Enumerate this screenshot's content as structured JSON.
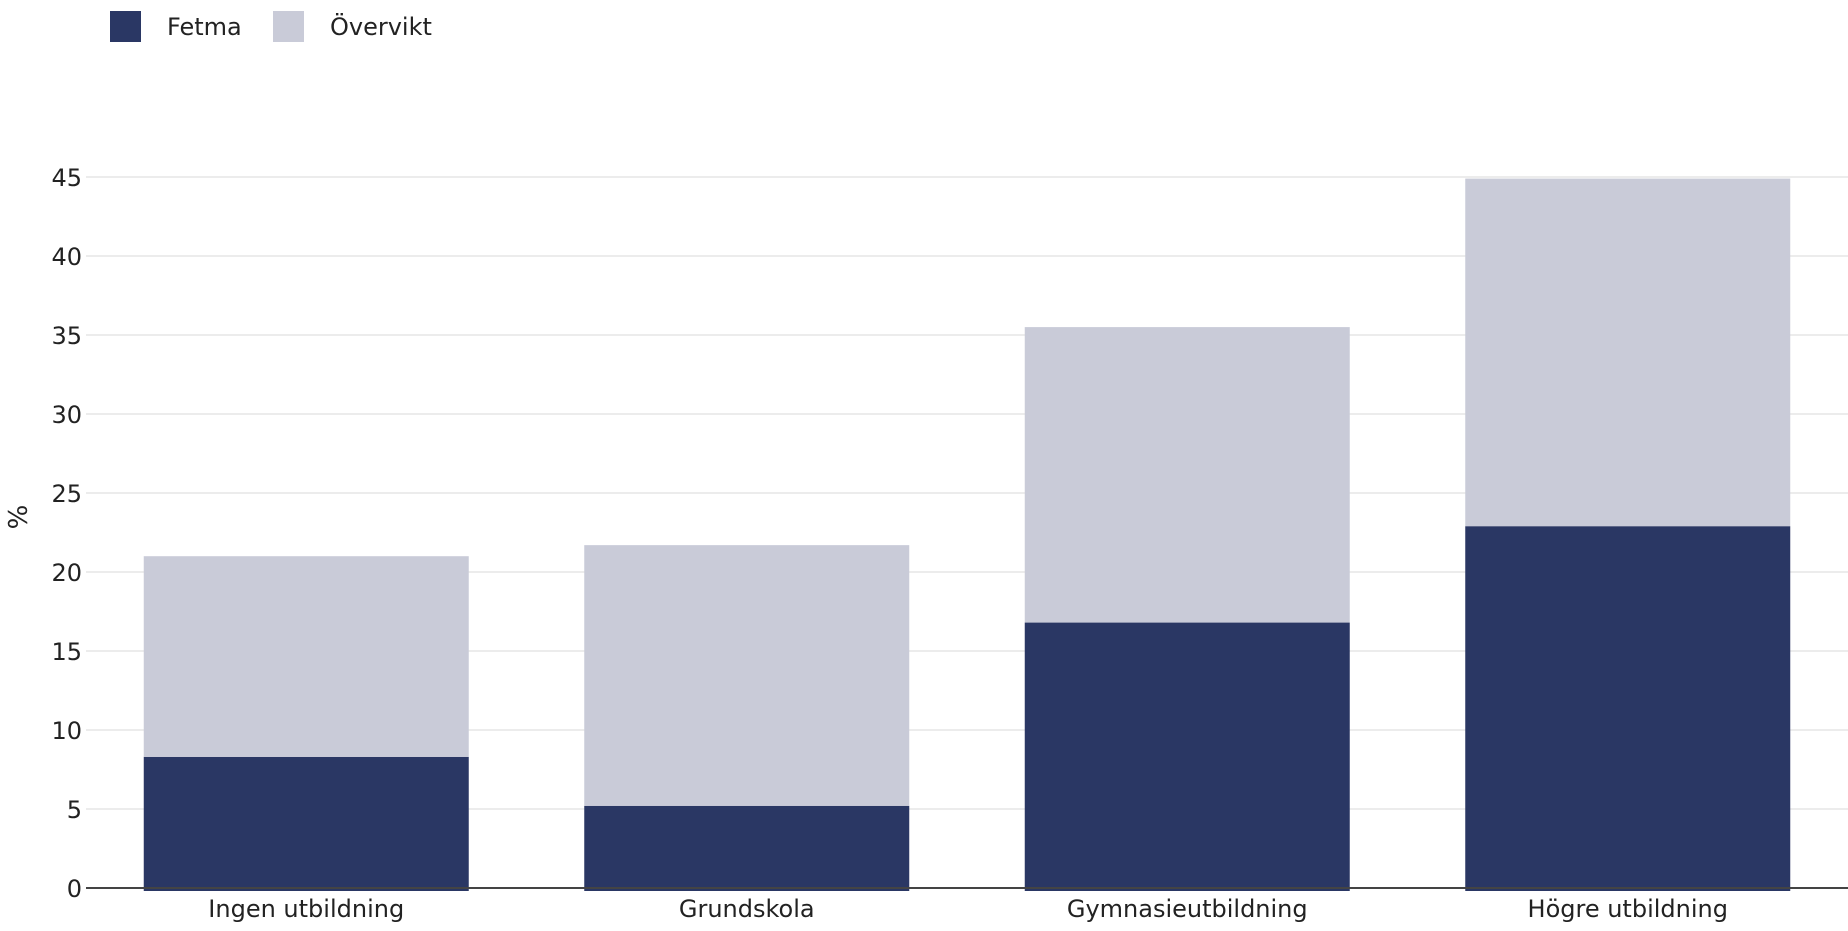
{
  "chart_data": {
    "type": "bar",
    "stacked": true,
    "categories": [
      "Ingen utbildning",
      "Grundskola",
      "Gymnasieutbildning",
      "Högre utbildning"
    ],
    "series": [
      {
        "name": "Fetma",
        "color": "#2a3764",
        "values": [
          8.3,
          5.2,
          16.8,
          22.9
        ]
      },
      {
        "name": "Övervikt",
        "color": "#c9cbd8",
        "values": [
          12.7,
          16.5,
          18.7,
          22.0
        ]
      }
    ],
    "ylabel": "%",
    "xlabel": "",
    "ylim": [
      0,
      45
    ],
    "yticks": [
      0,
      5,
      10,
      15,
      20,
      25,
      30,
      35,
      40,
      45
    ],
    "grid": true,
    "legend_position": "top-left"
  }
}
